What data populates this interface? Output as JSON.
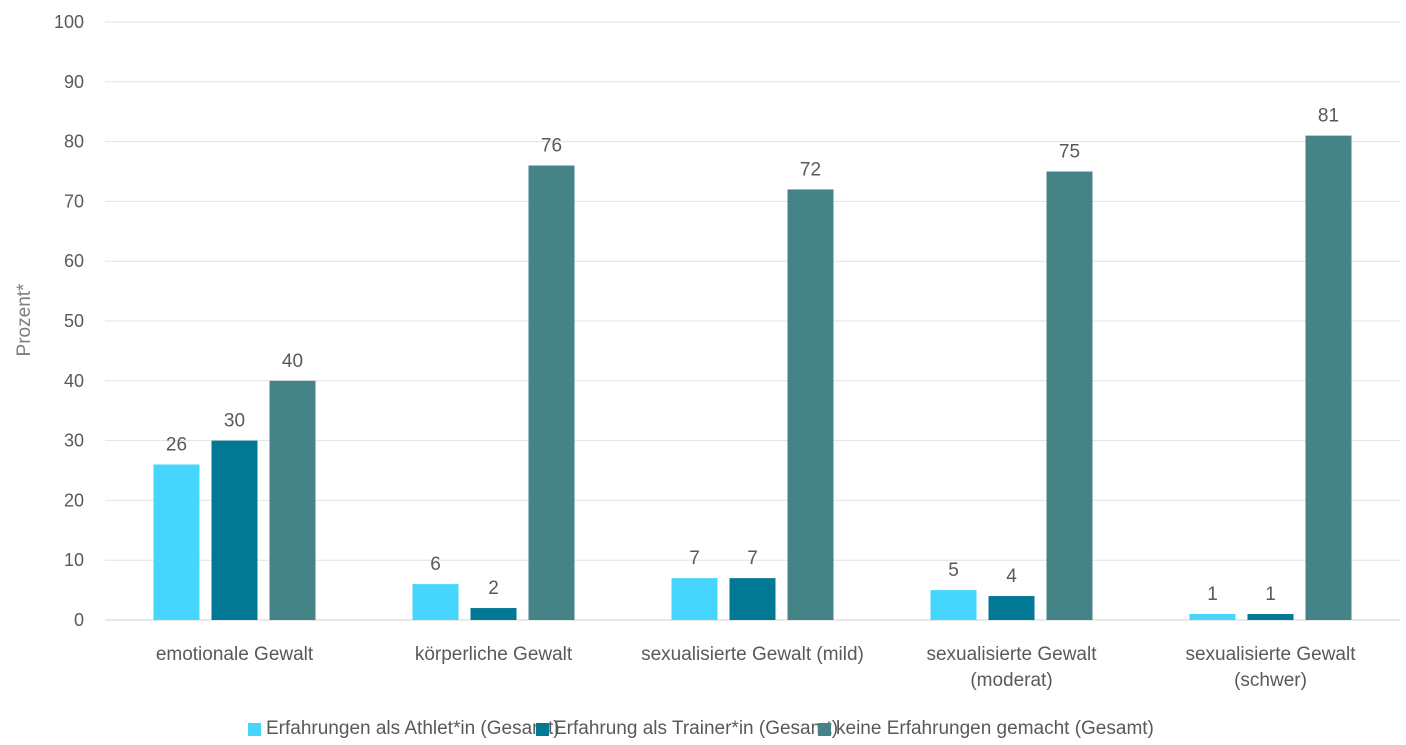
{
  "chart_data": {
    "type": "bar",
    "ylabel": "Prozent*",
    "xlabel": "",
    "ylim": [
      0,
      100
    ],
    "yticks": [
      0,
      10,
      20,
      30,
      40,
      50,
      60,
      70,
      80,
      90,
      100
    ],
    "grid": true,
    "legend_position": "bottom",
    "categories": [
      [
        "emotionale Gewalt"
      ],
      [
        "körperliche Gewalt"
      ],
      [
        "sexualisierte Gewalt (mild)"
      ],
      [
        "sexualisierte Gewalt",
        "(moderat)"
      ],
      [
        "sexualisierte Gewalt",
        "(schwer)"
      ]
    ],
    "series": [
      {
        "name": "Erfahrungen als Athlet*in (Gesamt)",
        "color": "#45d5fd",
        "values": [
          26,
          6,
          7,
          5,
          1
        ]
      },
      {
        "name": "Erfahrung als Trainer*in (Gesamt)",
        "color": "#017894",
        "values": [
          30,
          2,
          7,
          4,
          1
        ]
      },
      {
        "name": "keine Erfahrungen gemacht (Gesamt)",
        "color": "#468386",
        "values": [
          40,
          76,
          72,
          75,
          81
        ]
      }
    ]
  }
}
